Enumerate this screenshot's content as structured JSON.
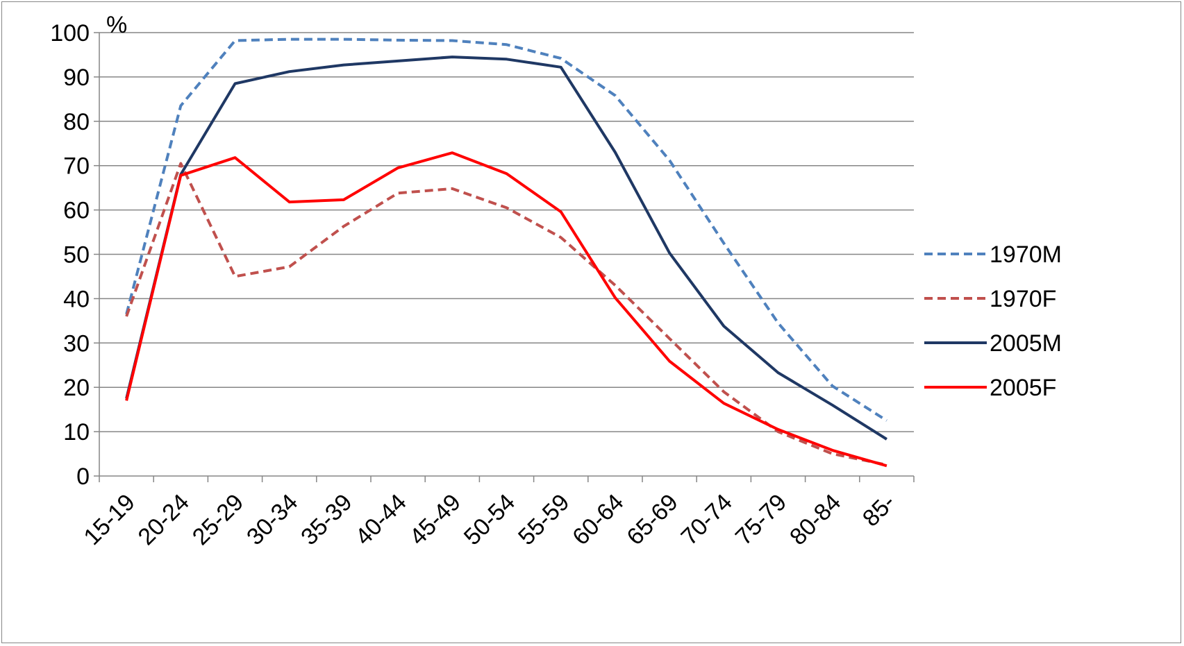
{
  "chart_data": {
    "type": "line",
    "title": "",
    "xlabel": "",
    "ylabel": "",
    "unit_label": "%",
    "ylim": [
      0,
      100
    ],
    "yticks": [
      "0",
      "10",
      "20",
      "30",
      "40",
      "50",
      "60",
      "70",
      "80",
      "90",
      "100"
    ],
    "categories": [
      "15-19",
      "20-24",
      "25-29",
      "30-34",
      "35-39",
      "40-44",
      "45-49",
      "50-54",
      "55-59",
      "60-64",
      "65-69",
      "70-74",
      "75-79",
      "80-84",
      "85-"
    ],
    "grid": true,
    "legend_position": "right",
    "series": [
      {
        "name": "1970M",
        "color": "#4F81BD",
        "style": "dashed",
        "values": [
          36.5,
          83.5,
          98.2,
          98.5,
          98.5,
          98.3,
          98.2,
          97.3,
          94.2,
          85.8,
          71.2,
          52.5,
          34.5,
          20.3,
          12.5
        ]
      },
      {
        "name": "1970F",
        "color": "#C0504D",
        "style": "dashed",
        "values": [
          36.0,
          70.5,
          45.0,
          47.2,
          56.3,
          63.8,
          64.8,
          60.5,
          53.8,
          43.0,
          31.0,
          19.0,
          10.0,
          5.0,
          2.5
        ]
      },
      {
        "name": "2005M",
        "color": "#1F3864",
        "style": "solid",
        "values": [
          17.5,
          68.0,
          88.5,
          91.2,
          92.7,
          93.6,
          94.5,
          94.0,
          92.2,
          73.0,
          50.3,
          33.8,
          23.3,
          16.0,
          8.3
        ]
      },
      {
        "name": "2005F",
        "color": "#FF0000",
        "style": "solid",
        "values": [
          17.0,
          67.8,
          71.8,
          61.8,
          62.3,
          69.5,
          72.9,
          68.2,
          59.6,
          40.2,
          25.9,
          16.4,
          10.5,
          5.8,
          2.3
        ]
      }
    ]
  }
}
